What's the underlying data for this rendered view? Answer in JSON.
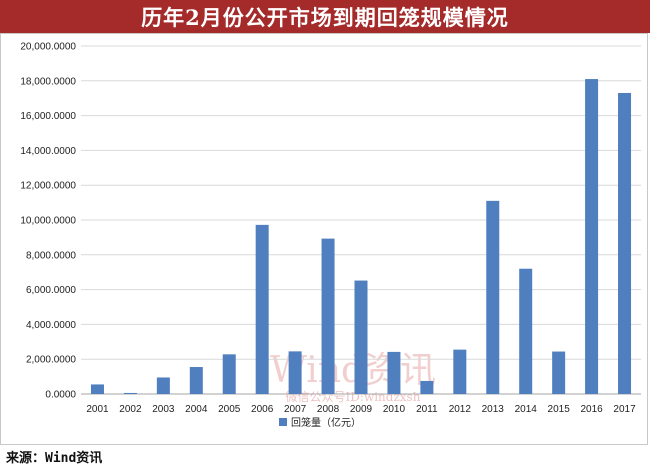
{
  "header": {
    "title": "历年2月份公开市场到期回笼规模情况"
  },
  "footer": {
    "source": "来源：Wind资讯"
  },
  "watermark": {
    "brand": "Wind资讯",
    "sub": "微信公众号ID:windzxsh"
  },
  "colors": {
    "title_bg": "#a52a2a",
    "bar": "#4f7fbf",
    "watermark": "#e8a9a9"
  },
  "chart_data": {
    "type": "bar",
    "categories": [
      "2001",
      "2002",
      "2003",
      "2004",
      "2005",
      "2006",
      "2007",
      "2008",
      "2009",
      "2010",
      "2011",
      "2012",
      "2013",
      "2014",
      "2015",
      "2016",
      "2017"
    ],
    "series": [
      {
        "name": "回笼量（亿元）",
        "values": [
          550,
          60,
          950,
          1550,
          2280,
          9720,
          2450,
          8930,
          6520,
          2420,
          750,
          2550,
          11100,
          7200,
          2440,
          18100,
          17300
        ]
      }
    ],
    "ylim": [
      0,
      20000
    ],
    "yticks": [
      "0.0000",
      "2,000.0000",
      "4,000.0000",
      "6,000.0000",
      "8,000.0000",
      "10,000.0000",
      "12,000.0000",
      "14,000.0000",
      "16,000.0000",
      "18,000.0000",
      "20,000.0000"
    ],
    "grid": true,
    "legend": "bottom"
  }
}
